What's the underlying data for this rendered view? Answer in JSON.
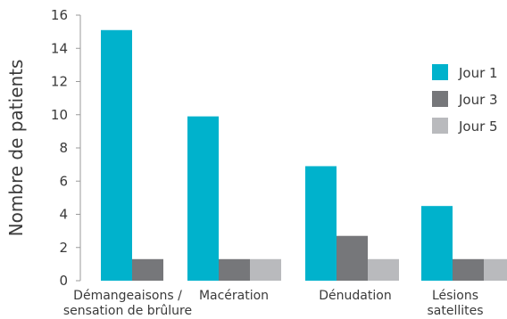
{
  "chart_data": {
    "type": "bar",
    "title": "",
    "xlabel": "",
    "ylabel": "Nombre de patients",
    "ylim": [
      0,
      16
    ],
    "yticks": [
      0,
      2,
      4,
      6,
      8,
      10,
      12,
      14,
      16
    ],
    "grid": false,
    "legend_position": "right",
    "categories": [
      [
        "Démangeaisons /",
        "sensation de brûlure"
      ],
      [
        "Macération"
      ],
      [
        "Dénudation"
      ],
      [
        "Lésions",
        "satellites"
      ]
    ],
    "series": [
      {
        "name": "Jour 1",
        "color": "#00b2cc",
        "values": [
          15.1,
          9.9,
          6.9,
          4.5
        ]
      },
      {
        "name": "Jour 3",
        "color": "#76777a",
        "values": [
          1.3,
          1.3,
          2.7,
          1.3
        ]
      },
      {
        "name": "Jour 5",
        "color": "#b9babd",
        "values": [
          0,
          1.3,
          1.3,
          1.3
        ]
      }
    ]
  }
}
